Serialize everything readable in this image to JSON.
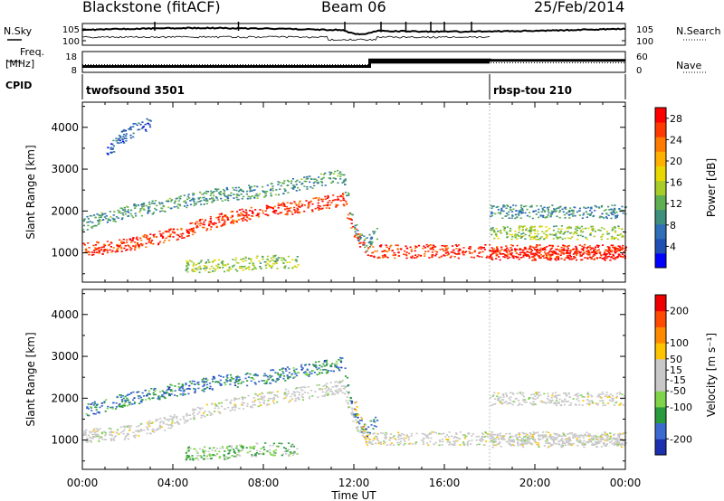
{
  "header": {
    "radar": "Blackstone (fitACF)",
    "beam": "Beam 06",
    "date": "25/Feb/2014"
  },
  "left_labels": {
    "nsky": "N.Sky",
    "freq": "Freq.",
    "mhz": "[MHz]",
    "cpid": "CPID"
  },
  "right_labels": {
    "nsearch": "N.Search",
    "nave": "Nave"
  },
  "cpid_segments": [
    {
      "name": "twofsound 3501",
      "start_hr": 0,
      "end_hr": 18
    },
    {
      "name": "rbsp-tou 210",
      "start_hr": 18,
      "end_hr": 24
    }
  ],
  "chart_data": [
    {
      "type": "line",
      "panel": "noise",
      "yscale": "log",
      "left_ticks": [
        "10^5",
        "10^0"
      ],
      "right_ticks": [
        "10^5",
        "10^0"
      ]
    },
    {
      "type": "line",
      "panel": "frequency",
      "left_ticks": [
        18,
        8
      ],
      "right_ticks": [
        60,
        0
      ],
      "series": [
        {
          "name": "Freq.",
          "x": [
            0,
            12.7,
            12.7,
            18,
            18,
            24
          ],
          "y": [
            10.3,
            10.3,
            15.2,
            15.2,
            14.8,
            14.8
          ]
        },
        {
          "name": "Nave",
          "x": [
            0,
            12.7,
            12.7,
            24
          ],
          "y": [
            22,
            22,
            30,
            30
          ]
        }
      ]
    },
    {
      "type": "heatmap",
      "panel": "power",
      "ylabel": "Slant Range [km]",
      "yticks": [
        1000,
        2000,
        3000,
        4000
      ],
      "ylim": [
        300,
        4600
      ],
      "xlim": [
        0,
        24
      ],
      "colorbar": {
        "label": "Power [dB]",
        "ticks": [
          4,
          8,
          12,
          16,
          20,
          24,
          28
        ],
        "range": [
          0,
          30
        ],
        "colors": [
          "#0000ff",
          "#1f4fb4",
          "#2e6fb7",
          "#3f8f7f",
          "#5fb050",
          "#a8cc28",
          "#e8d800",
          "#ffb000",
          "#ff7a00",
          "#ff3a00",
          "#ff0000"
        ]
      },
      "traces": [
        {
          "x": [
            0,
            2,
            4,
            6,
            8,
            10,
            11.5,
            12,
            12.5,
            13,
            15,
            18,
            24
          ],
          "y": [
            1100,
            1200,
            1450,
            1800,
            2000,
            2150,
            2300,
            1500,
            1100,
            1050,
            1050,
            1050,
            1050
          ],
          "level": 27
        },
        {
          "x": [
            0,
            2,
            4,
            6,
            8,
            10,
            11.5,
            12,
            12.5,
            13
          ],
          "y": [
            1700,
            2000,
            2200,
            2400,
            2500,
            2700,
            2850,
            1600,
            1200,
            1500
          ],
          "level": 10
        },
        {
          "x": [
            1,
            2,
            3
          ],
          "y": [
            3400,
            3900,
            4100
          ],
          "level": 6
        },
        {
          "x": [
            4.5,
            6,
            7,
            8,
            9.5
          ],
          "y": [
            700,
            700,
            750,
            800,
            800
          ],
          "level": 14
        },
        {
          "x": [
            18,
            20,
            22,
            24
          ],
          "y": [
            2000,
            2000,
            2000,
            2000
          ],
          "level": 9
        },
        {
          "x": [
            18,
            20,
            22,
            24
          ],
          "y": [
            1500,
            1500,
            1500,
            1500
          ],
          "level": 14
        },
        {
          "x": [
            18,
            20,
            22,
            24
          ],
          "y": [
            1000,
            1000,
            1000,
            1000
          ],
          "level": 29
        }
      ]
    },
    {
      "type": "heatmap",
      "panel": "velocity",
      "ylabel": "Slant Range [km]",
      "yticks": [
        1000,
        2000,
        3000,
        4000
      ],
      "ylim": [
        300,
        4600
      ],
      "xlim": [
        0,
        24
      ],
      "xticks": [
        "00:00",
        "04:00",
        "08:00",
        "12:00",
        "16:00",
        "20:00",
        "00:00"
      ],
      "xlabel": "Time UT",
      "colorbar": {
        "label": "Velocity [m s⁻¹]",
        "ticks": [
          200,
          100,
          50,
          15,
          -15,
          -50,
          -100,
          -200
        ],
        "range": [
          -250,
          250
        ],
        "colors": [
          "#1c2fae",
          "#3b6bd1",
          "#2a9a3e",
          "#7fd44a",
          "#c8c8c8",
          "#c8c8c8",
          "#ffc400",
          "#ff8a00",
          "#ff4a00",
          "#ee0000"
        ]
      },
      "traces": [
        {
          "x": [
            0,
            2,
            4,
            6,
            8,
            10,
            11.5,
            12,
            12.5,
            13,
            15,
            18,
            24
          ],
          "y": [
            1100,
            1200,
            1450,
            1800,
            2000,
            2150,
            2300,
            1500,
            1100,
            1050,
            1050,
            1050,
            1050
          ],
          "level": 0
        },
        {
          "x": [
            0,
            2,
            4,
            6,
            8,
            10,
            11.5,
            12,
            12.5,
            13
          ],
          "y": [
            1700,
            2000,
            2200,
            2400,
            2500,
            2700,
            2850,
            1600,
            1200,
            1500
          ],
          "level": -150
        },
        {
          "x": [
            12,
            12.3,
            12.6
          ],
          "y": [
            1900,
            1400,
            1000
          ],
          "level": 60
        },
        {
          "x": [
            4.5,
            6,
            7,
            8,
            9.5
          ],
          "y": [
            700,
            700,
            750,
            800,
            800
          ],
          "level": -80
        },
        {
          "x": [
            18,
            20,
            22,
            24
          ],
          "y": [
            2000,
            2000,
            2000,
            2000
          ],
          "level": 0
        },
        {
          "x": [
            18,
            20,
            22,
            24
          ],
          "y": [
            1000,
            1000,
            1000,
            1000
          ],
          "level": 0
        }
      ]
    }
  ]
}
